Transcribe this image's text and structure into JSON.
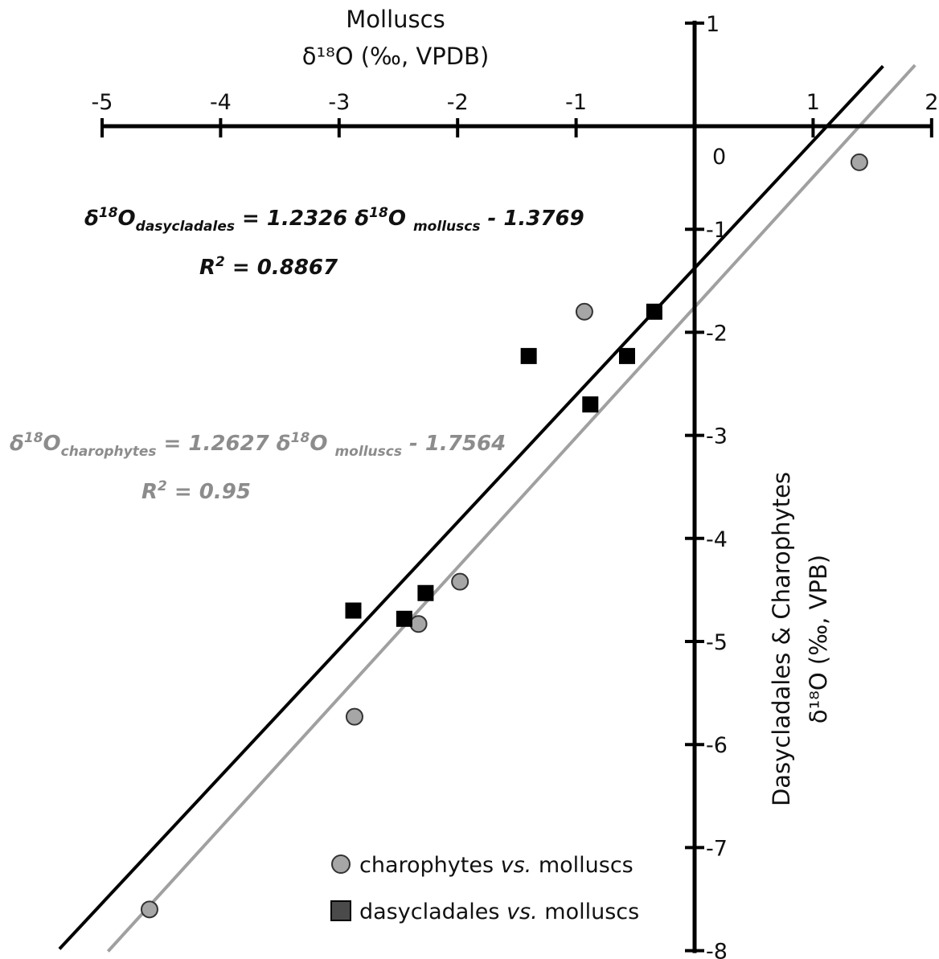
{
  "chart_data": {
    "type": "scatter",
    "x_axis": {
      "title_line1": "Molluscs",
      "title_line2": "δ¹⁸O (‰, VPDB)",
      "range": [
        -5,
        2
      ],
      "ticks": [
        -5,
        -4,
        -3,
        -2,
        -1,
        0,
        1,
        2
      ],
      "tick_labels": [
        "-5",
        "-4",
        "-3",
        "-2",
        "-1",
        "",
        "1",
        "2"
      ],
      "position": "top"
    },
    "y_axis": {
      "title_line1": "Dasycladales & Charophytes",
      "title_line2": "δ¹⁸O (‰, VPB)",
      "range": [
        -8,
        1
      ],
      "ticks": [
        1,
        0,
        -1,
        -2,
        -3,
        -4,
        -5,
        -6,
        -7,
        -8
      ],
      "tick_labels": [
        "1",
        "0",
        "-1",
        "-2",
        "-3",
        "-4",
        "-5",
        "-6",
        "-7",
        "-8"
      ],
      "position": "right"
    },
    "series": [
      {
        "name": "charophytes vs. molluscs",
        "marker": "circle",
        "color": "#a6a6a6",
        "points": [
          {
            "x": -4.6,
            "y": -7.6
          },
          {
            "x": -2.87,
            "y": -5.73
          },
          {
            "x": -2.33,
            "y": -4.83
          },
          {
            "x": -1.98,
            "y": -4.42
          },
          {
            "x": -0.93,
            "y": -1.8
          },
          {
            "x": 1.39,
            "y": -0.35
          }
        ],
        "fit": {
          "slope": 1.2627,
          "intercept": -1.7564,
          "x_range": [
            -4.95,
            1.86
          ]
        },
        "equation": {
          "lhs": "δ",
          "lhs_sup": "18",
          "lhs_var": "O",
          "lhs_sub": "charophytes",
          "mid": " = 1.2627 δ",
          "mid_sup": "18",
          "mid_var": "O ",
          "rhs_sub": "molluscs",
          "rhs": " - 1.7564",
          "r2_label": "R",
          "r2_sup": "2",
          "r2_value": " = 0.95",
          "color": "#8c8c8c"
        }
      },
      {
        "name": "dasycladales vs. molluscs",
        "marker": "square",
        "color": "#000000",
        "points": [
          {
            "x": -2.88,
            "y": -4.7
          },
          {
            "x": -2.45,
            "y": -4.78
          },
          {
            "x": -2.27,
            "y": -4.53
          },
          {
            "x": -1.4,
            "y": -2.23
          },
          {
            "x": -0.57,
            "y": -2.23
          },
          {
            "x": -0.88,
            "y": -2.7
          },
          {
            "x": -0.34,
            "y": -1.8
          }
        ],
        "fit": {
          "slope": 1.2326,
          "intercept": -1.3769,
          "x_range": [
            -5.36,
            1.59
          ]
        },
        "equation": {
          "lhs": "δ",
          "lhs_sup": "18",
          "lhs_var": "O",
          "lhs_sub": "dasycladales",
          "mid": " = 1.2326 δ",
          "mid_sup": "18",
          "mid_var": "O ",
          "rhs_sub": "molluscs",
          "rhs": " - 1.3769",
          "r2_label": "R",
          "r2_sup": "2",
          "r2_value": " = 0.8867",
          "color": "#111111"
        }
      }
    ],
    "legend": {
      "placement": "bottom-right",
      "items": [
        {
          "marker": "circle",
          "color": "#a6a6a6",
          "pre": "charophytes ",
          "italic": "vs.",
          "post": " molluscs"
        },
        {
          "marker": "square",
          "color": "#4a4a4a",
          "pre": "dasycladales ",
          "italic": "vs.",
          "post": " molluscs"
        }
      ]
    },
    "grid": false
  }
}
